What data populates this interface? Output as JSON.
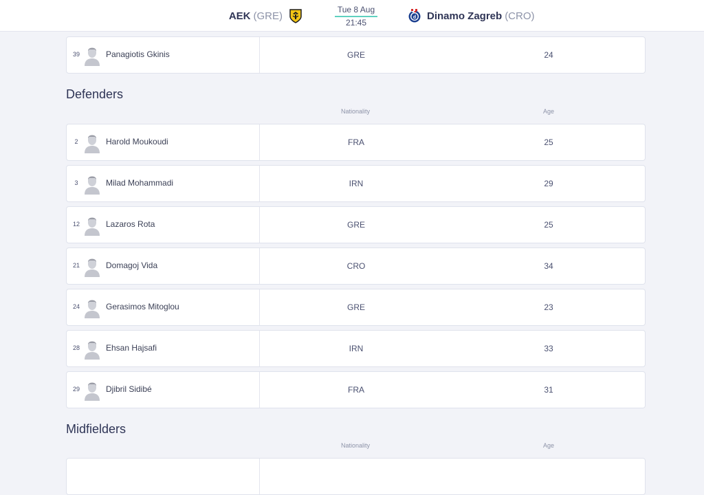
{
  "header": {
    "home_team": "AEK",
    "home_country": "(GRE)",
    "match_date": "Tue 8 Aug",
    "match_time": "21:45",
    "away_team": "Dinamo Zagreb",
    "away_country": "(CRO)",
    "accent_color": "#5fd1c0"
  },
  "top_row": {
    "number": "39",
    "name": "Panagiotis Gkinis",
    "nationality": "GRE",
    "age": "24"
  },
  "defenders": {
    "title": "Defenders",
    "nationality_header": "Nationality",
    "age_header": "Age",
    "players": [
      {
        "number": "2",
        "name": "Harold Moukoudi",
        "nationality": "FRA",
        "age": "25"
      },
      {
        "number": "3",
        "name": "Milad Mohammadi",
        "nationality": "IRN",
        "age": "29"
      },
      {
        "number": "12",
        "name": "Lazaros Rota",
        "nationality": "GRE",
        "age": "25"
      },
      {
        "number": "21",
        "name": "Domagoj Vida",
        "nationality": "CRO",
        "age": "34"
      },
      {
        "number": "24",
        "name": "Gerasimos Mitoglou",
        "nationality": "GRE",
        "age": "23"
      },
      {
        "number": "28",
        "name": "Ehsan Hajsafi",
        "nationality": "IRN",
        "age": "33"
      },
      {
        "number": "29",
        "name": "Djibril Sidibé",
        "nationality": "FRA",
        "age": "31"
      }
    ]
  },
  "midfielders": {
    "title": "Midfielders",
    "nationality_header": "Nationality",
    "age_header": "Age"
  }
}
